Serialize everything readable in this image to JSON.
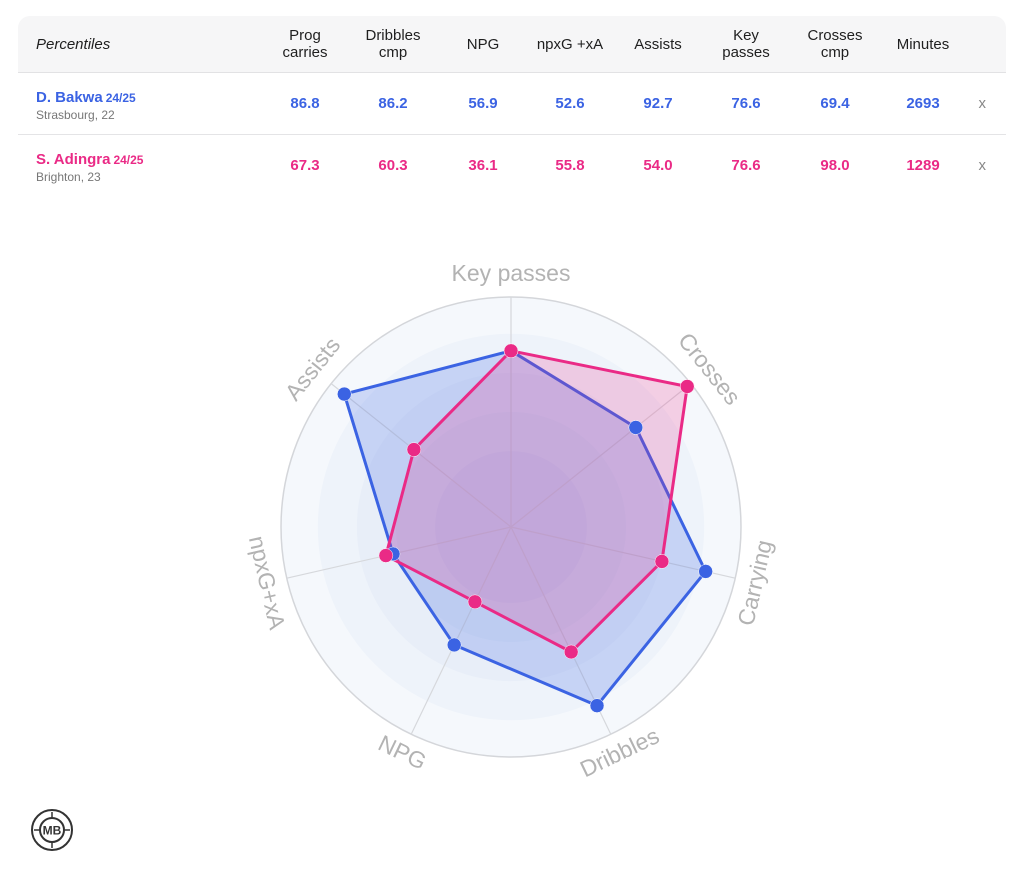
{
  "table": {
    "title": "Percentiles",
    "columns": [
      "Prog\ncarries",
      "Dribbles\ncmp",
      "NPG",
      "npxG +xA",
      "Assists",
      "Key\npasses",
      "Crosses\ncmp",
      "Minutes"
    ],
    "remove_label": "x",
    "players": [
      {
        "name": "D. Bakwa",
        "season": "24/25",
        "sub": "Strasbourg, 22",
        "values": [
          "86.8",
          "86.2",
          "56.9",
          "52.6",
          "92.7",
          "76.6",
          "69.4",
          "2693"
        ],
        "color": "#3b63e3"
      },
      {
        "name": "S. Adingra",
        "season": "24/25",
        "sub": "Brighton, 23",
        "values": [
          "67.3",
          "60.3",
          "36.1",
          "55.8",
          "54.0",
          "76.6",
          "98.0",
          "1289"
        ],
        "color": "#ea2a86"
      }
    ]
  },
  "chart_data": {
    "type": "radar",
    "axes": [
      "Key passes",
      "Crosses",
      "Carrying",
      "Dribbles",
      "NPG",
      "npxG+xA",
      "Assists"
    ],
    "range": [
      0,
      100
    ],
    "series": [
      {
        "name": "D. Bakwa",
        "values": [
          76.6,
          69.4,
          86.8,
          86.2,
          56.9,
          52.6,
          92.7
        ],
        "color": "#3b63e3"
      },
      {
        "name": "S. Adingra",
        "values": [
          76.6,
          98.0,
          67.3,
          60.3,
          36.1,
          55.8,
          54.0
        ],
        "color": "#ea2a86"
      }
    ]
  },
  "logo": {
    "text": "MB"
  }
}
